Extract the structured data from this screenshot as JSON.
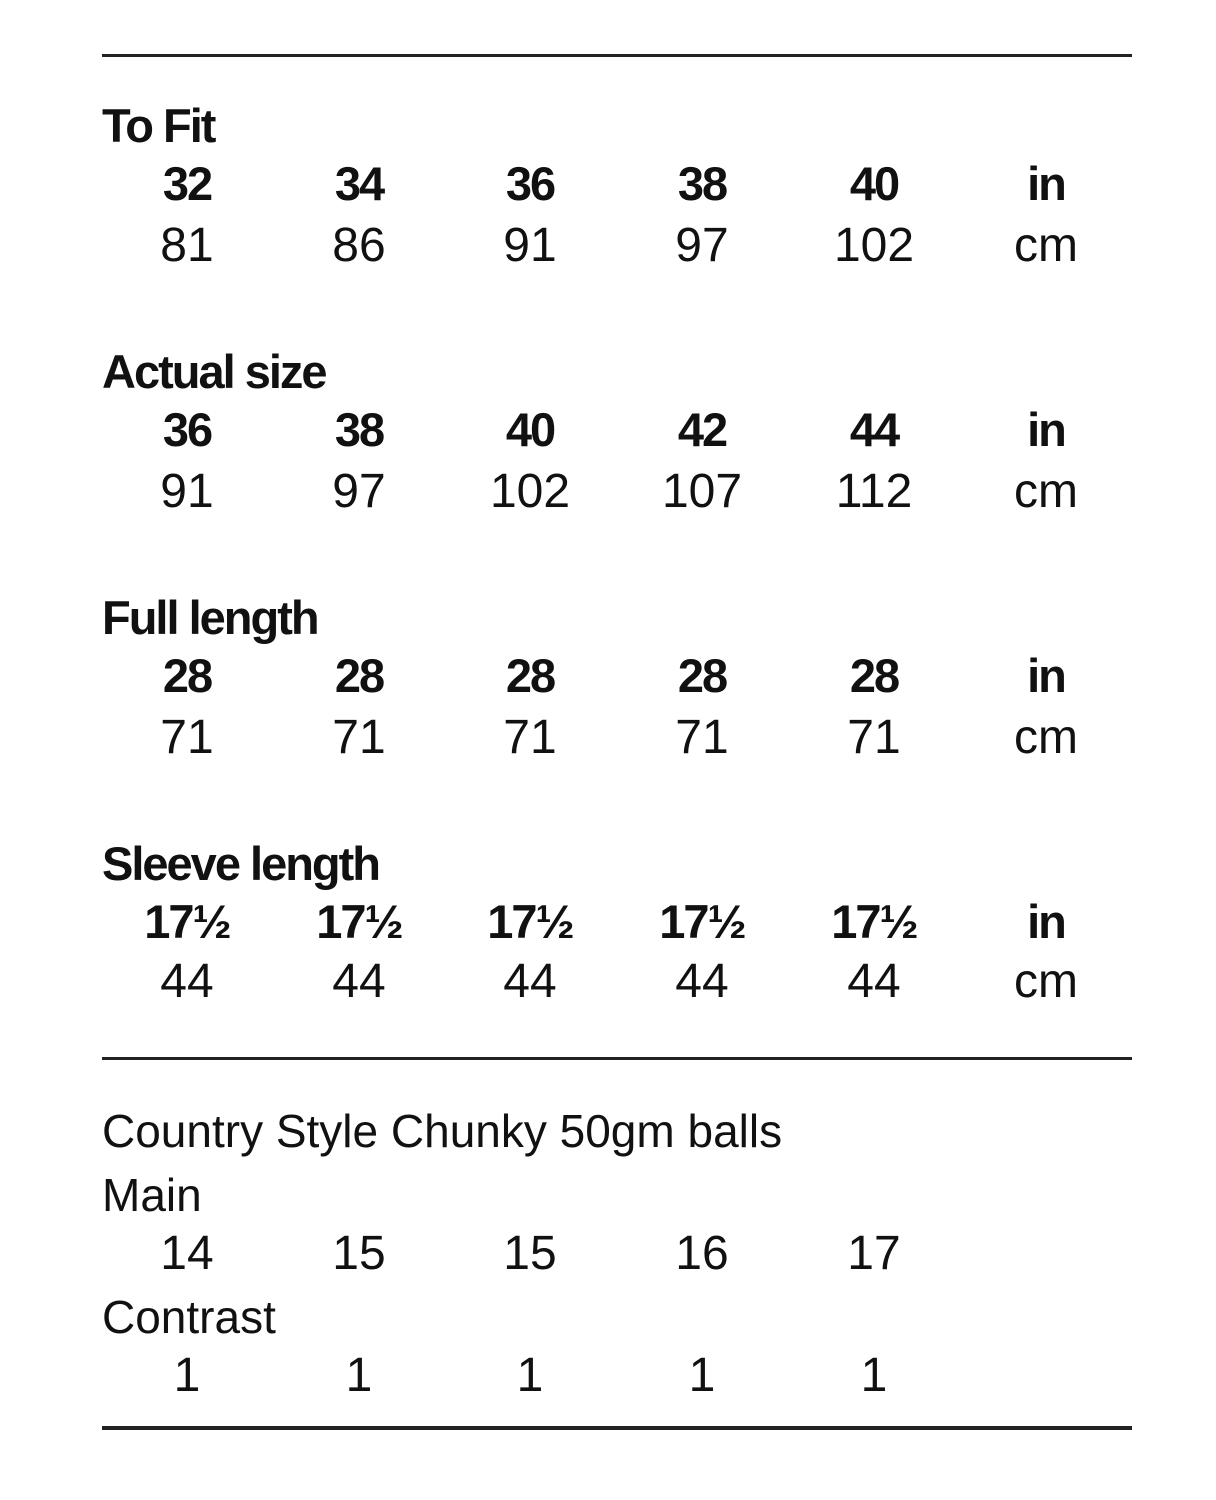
{
  "sections": [
    {
      "label": "To Fit",
      "inches": [
        "32",
        "34",
        "36",
        "38",
        "40"
      ],
      "cm": [
        "81",
        "86",
        "91",
        "97",
        "102"
      ],
      "unit_in": "in",
      "unit_cm": "cm"
    },
    {
      "label": "Actual size",
      "inches": [
        "36",
        "38",
        "40",
        "42",
        "44"
      ],
      "cm": [
        "91",
        "97",
        "102",
        "107",
        "112"
      ],
      "unit_in": "in",
      "unit_cm": "cm"
    },
    {
      "label": "Full length",
      "inches": [
        "28",
        "28",
        "28",
        "28",
        "28"
      ],
      "cm": [
        "71",
        "71",
        "71",
        "71",
        "71"
      ],
      "unit_in": "in",
      "unit_cm": "cm"
    },
    {
      "label": "Sleeve length",
      "inches": [
        "17½",
        "17½",
        "17½",
        "17½",
        "17½"
      ],
      "cm": [
        "44",
        "44",
        "44",
        "44",
        "44"
      ],
      "unit_in": "in",
      "unit_cm": "cm"
    }
  ],
  "yarn": {
    "title": "Country Style Chunky 50gm balls",
    "main_label": "Main",
    "main_values": [
      "14",
      "15",
      "15",
      "16",
      "17"
    ],
    "contrast_label": "Contrast",
    "contrast_values": [
      "1",
      "1",
      "1",
      "1",
      "1"
    ]
  }
}
